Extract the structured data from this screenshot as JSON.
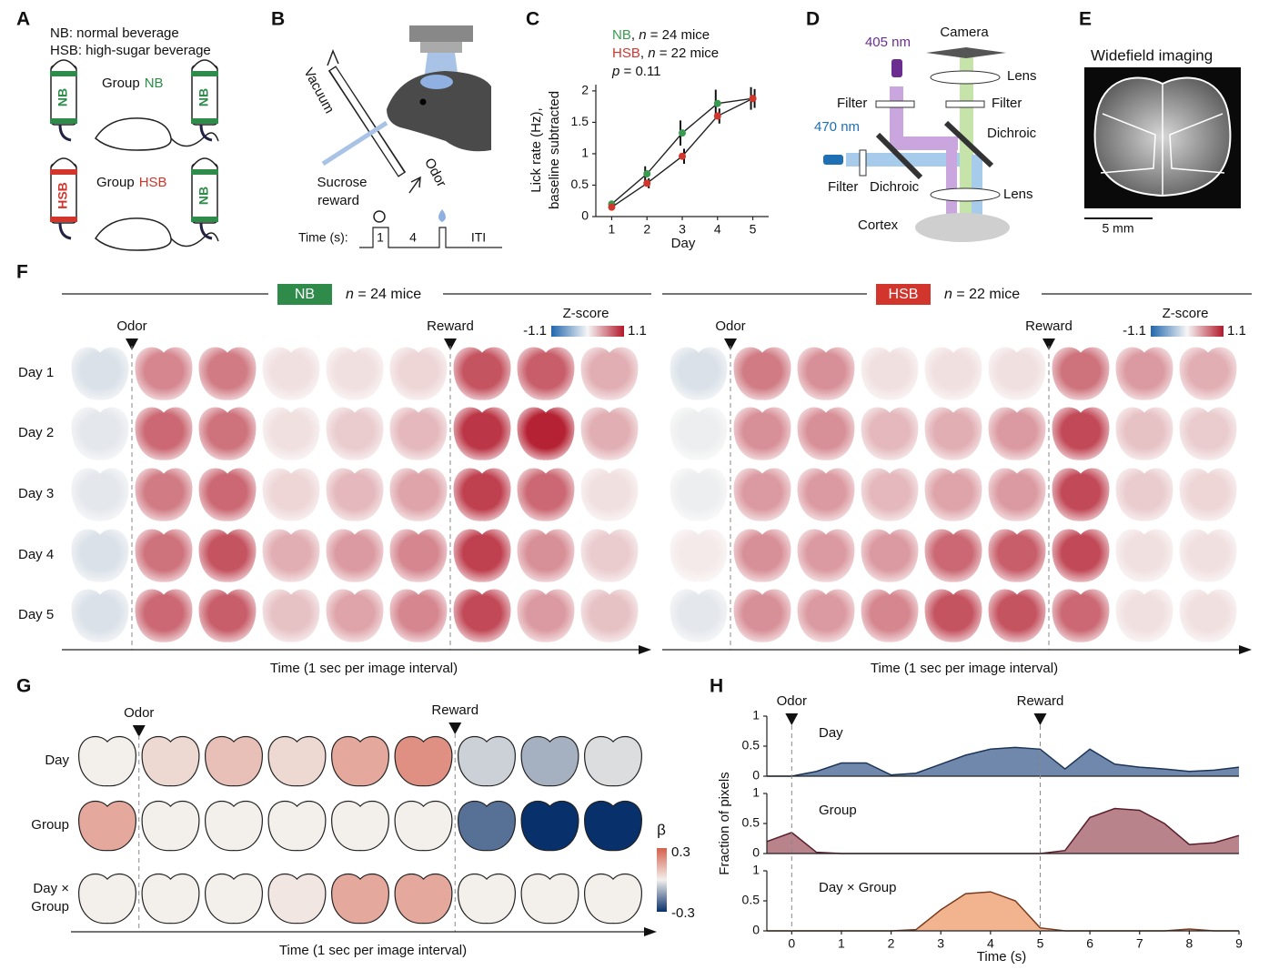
{
  "panel_labels": [
    "A",
    "B",
    "C",
    "D",
    "E",
    "F",
    "G",
    "H"
  ],
  "panel_a": {
    "legend": [
      "NB: normal beverage",
      "HSB: high-sugar beverage"
    ],
    "groups": [
      {
        "prefix": "Group",
        "name": "NB",
        "color": "#2e8b4a",
        "bottles": [
          "NB",
          "NB"
        ]
      },
      {
        "prefix": "Group",
        "name": "HSB",
        "color": "#d2352c",
        "bottles": [
          "HSB",
          "NB"
        ]
      }
    ]
  },
  "panel_b": {
    "vacuum": "Vacuum",
    "odor": "Odor",
    "sucrose": "Sucrose",
    "reward": "reward",
    "time": "Time (s):",
    "t1": "1",
    "t4": "4",
    "iti": "ITI"
  },
  "panel_d": {
    "l405": "405 nm",
    "camera": "Camera",
    "lens_top": "Lens",
    "filter_left": "Filter",
    "filter_right": "Filter",
    "l470": "470 nm",
    "dichroic_right": "Dichroic",
    "filter_bottom": "Filter",
    "dichroic_bottom": "Dichroic",
    "lens_bottom": "Lens",
    "cortex": "Cortex"
  },
  "panel_e": {
    "title": "Widefield imaging",
    "scale": "5 mm"
  },
  "chart_data": [
    {
      "type": "line",
      "ylabel": [
        "Lick rate (Hz),",
        "baseline subtracted"
      ],
      "xlabel": "Day",
      "legend_text": [
        {
          "sep": ", ",
          "n": "n",
          "rest": " = 24 mice"
        },
        {
          "sep": ", ",
          "n": "n",
          "rest": " = 22 mice"
        }
      ],
      "p_text": {
        "p": "p",
        "rest": " = 0.11"
      },
      "x": [
        1,
        2,
        3,
        4,
        5
      ],
      "xlim": [
        0.55,
        5.45
      ],
      "xticks": [
        1,
        2,
        3,
        4,
        5
      ],
      "ylim": [
        0,
        2.1
      ],
      "yticks": [
        0,
        0.5,
        1,
        1.5,
        2
      ],
      "series": [
        {
          "name": "NB",
          "color": "#3a9a4f",
          "values": [
            0.2,
            0.68,
            1.33,
            1.8,
            1.88
          ],
          "errors": [
            0.03,
            0.12,
            0.2,
            0.22,
            0.18
          ]
        },
        {
          "name": "HSB",
          "color": "#d2352c",
          "values": [
            0.15,
            0.53,
            0.96,
            1.6,
            1.88
          ],
          "errors": [
            0.03,
            0.08,
            0.12,
            0.12,
            0.15
          ]
        }
      ]
    },
    {
      "type": "area",
      "title": "Day",
      "color": "#7088ab",
      "line": "#1d3557",
      "x": [
        -0.5,
        0,
        0.5,
        1,
        1.5,
        2,
        2.5,
        3,
        3.5,
        4,
        4.5,
        5,
        5.5,
        6,
        6.5,
        7,
        7.5,
        8,
        8.5,
        9
      ],
      "values": [
        0,
        0,
        0.08,
        0.22,
        0.22,
        0.02,
        0.05,
        0.2,
        0.35,
        0.45,
        0.48,
        0.45,
        0.12,
        0.45,
        0.2,
        0.15,
        0.12,
        0.08,
        0.1,
        0.15
      ],
      "xlim": [
        -0.5,
        9
      ],
      "ylim": [
        0,
        1
      ],
      "yticks": [
        0,
        0.5,
        1
      ]
    },
    {
      "type": "area",
      "title": "Group",
      "color": "#b9838c",
      "line": "#5a1e2a",
      "x": [
        -0.5,
        0,
        0.5,
        1,
        1.5,
        2,
        2.5,
        3,
        3.5,
        4,
        4.5,
        5,
        5.5,
        6,
        6.5,
        7,
        7.5,
        8,
        8.5,
        9
      ],
      "values": [
        0.2,
        0.35,
        0.02,
        0,
        0,
        0,
        0,
        0,
        0,
        0,
        0,
        0,
        0.05,
        0.6,
        0.75,
        0.72,
        0.5,
        0.15,
        0.18,
        0.3
      ],
      "xlim": [
        -0.5,
        9
      ],
      "ylim": [
        0,
        1
      ],
      "yticks": [
        0,
        0.5,
        1
      ]
    },
    {
      "type": "area",
      "title": "Day × Group",
      "color": "#f2b48f",
      "line": "#7a3b1e",
      "x": [
        -0.5,
        0,
        0.5,
        1,
        1.5,
        2,
        2.5,
        3,
        3.5,
        4,
        4.5,
        5,
        5.5,
        6,
        6.5,
        7,
        7.5,
        8,
        8.5,
        9
      ],
      "values": [
        0,
        0,
        0,
        0,
        0,
        0,
        0.02,
        0.35,
        0.62,
        0.65,
        0.5,
        0.05,
        0,
        0,
        0,
        0,
        0,
        0.03,
        0,
        0
      ],
      "xlim": [
        -0.5,
        9
      ],
      "ylim": [
        0,
        1
      ],
      "yticks": [
        0,
        0.5,
        1
      ],
      "xticks": [
        0,
        1,
        2,
        3,
        4,
        5,
        6,
        7,
        8,
        9
      ],
      "xlabel": "Time (s)"
    }
  ],
  "panel_f": {
    "groups": [
      {
        "name": "NB",
        "color": "#2e8b4a",
        "n": "n",
        "rest": " = 24 mice"
      },
      {
        "name": "HSB",
        "color": "#d2352c",
        "n": "n",
        "rest": " = 22 mice"
      }
    ],
    "odor": "Odor",
    "reward": "Reward",
    "zscore": "Z-score",
    "zlim": [
      -1.1,
      1.1
    ],
    "days": [
      "Day 1",
      "Day 2",
      "Day 3",
      "Day 4",
      "Day 5"
    ],
    "xlabel": "Time (1 sec per image interval)",
    "maps": [
      [
        [
          -0.15,
          0.55,
          0.6,
          0.1,
          0.1,
          0.15,
          0.8,
          0.75,
          0.35
        ],
        [
          -0.1,
          0.7,
          0.65,
          0.1,
          0.2,
          0.3,
          0.95,
          1.05,
          0.35
        ],
        [
          -0.1,
          0.6,
          0.7,
          0.15,
          0.3,
          0.4,
          0.9,
          0.7,
          0.1
        ],
        [
          -0.15,
          0.65,
          0.8,
          0.35,
          0.45,
          0.55,
          0.9,
          0.5,
          0.2
        ],
        [
          -0.15,
          0.7,
          0.75,
          0.25,
          0.4,
          0.55,
          0.85,
          0.45,
          0.25
        ]
      ],
      [
        [
          -0.15,
          0.6,
          0.5,
          0.1,
          0.1,
          0.1,
          0.65,
          0.45,
          0.35
        ],
        [
          -0.05,
          0.5,
          0.5,
          0.3,
          0.35,
          0.45,
          0.85,
          0.25,
          0.2
        ],
        [
          -0.05,
          0.45,
          0.45,
          0.3,
          0.4,
          0.45,
          0.85,
          0.2,
          0.15
        ],
        [
          0.05,
          0.5,
          0.45,
          0.45,
          0.7,
          0.75,
          0.85,
          0.1,
          0.1
        ],
        [
          -0.1,
          0.5,
          0.45,
          0.55,
          0.8,
          0.8,
          0.7,
          0.1,
          0.1
        ]
      ]
    ]
  },
  "panel_g": {
    "odor": "Odor",
    "reward": "Reward",
    "beta": "β",
    "blim": [
      -0.3,
      0.3
    ],
    "xlabel": "Time (1 sec per image interval)",
    "rows": [
      {
        "label": [
          "Day"
        ],
        "beta": [
          0,
          0.05,
          0.1,
          0.05,
          0.15,
          0.2,
          -0.05,
          -0.1,
          -0.03
        ]
      },
      {
        "label": [
          "Group"
        ],
        "beta": [
          0.15,
          0,
          0,
          0,
          0,
          0,
          -0.2,
          -0.3,
          -0.3
        ]
      },
      {
        "label": [
          "Day ×",
          "Group"
        ],
        "beta": [
          0,
          0,
          0,
          0.02,
          0.15,
          0.15,
          0,
          0,
          0
        ]
      }
    ]
  },
  "panel_h": {
    "ylabel": "Fraction of pixels",
    "events": [
      {
        "x": 0,
        "label": "Odor"
      },
      {
        "x": 5,
        "label": "Reward"
      }
    ]
  }
}
